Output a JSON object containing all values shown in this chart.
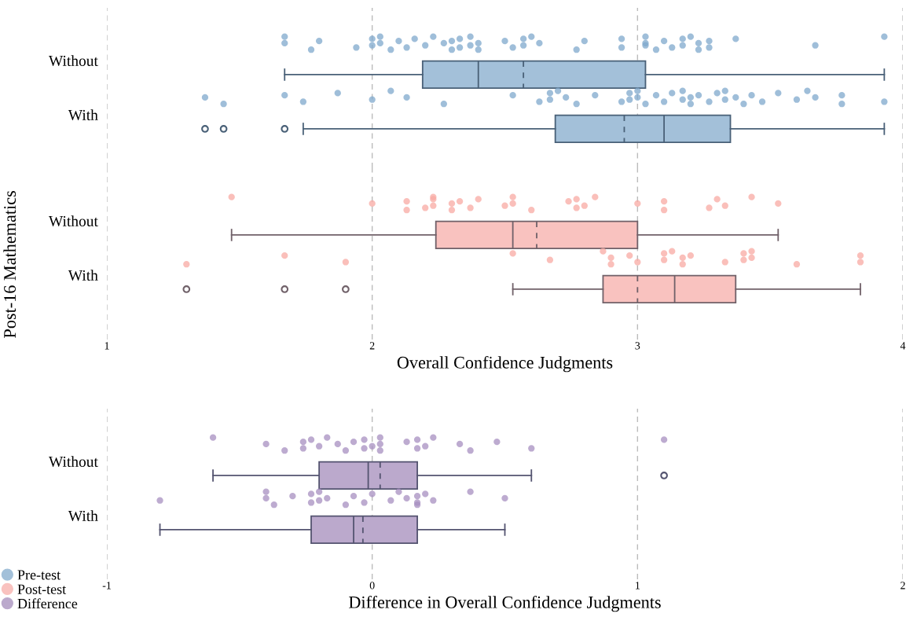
{
  "chart_data": [
    {
      "type": "box",
      "orientation": "horizontal",
      "ylabel": "Post-16 Mathematics",
      "categories": [
        "Without",
        "With"
      ],
      "tick_labels": "y",
      "xlim": [
        1,
        4
      ],
      "xticks": [
        1,
        2,
        3,
        4
      ],
      "grid": "x",
      "series": [
        {
          "name": "Pre-test",
          "color": "#a3c0d9",
          "boxes": [
            {
              "low": 1.67,
              "q1": 2.19,
              "median": 2.4,
              "q3": 3.03,
              "high": 3.93,
              "mean": 2.57
            },
            {
              "low": 1.74,
              "q1": 2.69,
              "median": 3.1,
              "q3": 3.35,
              "high": 3.93,
              "mean": 2.95,
              "outliers": [
                1.37,
                1.44,
                1.67
              ]
            }
          ]
        },
        {
          "type": "scatter",
          "color": "#7fa8cc",
          "x": [
            "Without",
            "Without",
            "Without",
            "Without",
            "Without",
            "Without",
            "Without",
            "Without",
            "Without",
            "Without",
            "Without",
            "Without",
            "Without",
            "Without",
            "Without",
            "Without",
            "Without",
            "Without",
            "Without",
            "Without",
            "Without",
            "Without",
            "Without",
            "Without",
            "Without",
            "Without",
            "Without",
            "Without",
            "Without",
            "Without",
            "Without",
            "Without",
            "Without",
            "Without",
            "Without",
            "Without",
            "Without",
            "Without",
            "Without",
            "Without",
            "Without",
            "Without",
            "Without",
            "Without",
            "Without",
            "Without",
            "Without",
            "Without",
            "Without",
            "Without",
            "With",
            "With",
            "With",
            "With",
            "With",
            "With",
            "With",
            "With",
            "With",
            "With",
            "With",
            "With",
            "With",
            "With",
            "With",
            "With",
            "With",
            "With",
            "With",
            "With",
            "With",
            "With",
            "With",
            "With",
            "With",
            "With",
            "With",
            "With",
            "With",
            "With",
            "With",
            "With",
            "With",
            "With",
            "With",
            "With",
            "With",
            "With",
            "With",
            "With",
            "With",
            "With",
            "With",
            "With",
            "With",
            "With"
          ],
          "values": [
            1.67,
            1.67,
            1.77,
            1.8,
            1.94,
            2.0,
            2.0,
            2.03,
            2.03,
            2.07,
            2.1,
            2.13,
            2.16,
            2.2,
            2.23,
            2.27,
            2.3,
            2.3,
            2.33,
            2.33,
            2.37,
            2.37,
            2.4,
            2.4,
            2.5,
            2.53,
            2.57,
            2.57,
            2.6,
            2.63,
            2.77,
            2.8,
            2.94,
            2.94,
            3.03,
            3.03,
            3.03,
            3.07,
            3.1,
            3.13,
            3.17,
            3.17,
            3.2,
            3.23,
            3.23,
            3.27,
            3.27,
            3.37,
            3.67,
            3.93,
            1.37,
            1.44,
            1.67,
            1.74,
            1.87,
            2.0,
            2.07,
            2.13,
            2.27,
            2.53,
            2.63,
            2.67,
            2.67,
            2.7,
            2.73,
            2.77,
            2.84,
            2.94,
            2.97,
            2.97,
            3.0,
            3.0,
            3.03,
            3.07,
            3.1,
            3.13,
            3.17,
            3.17,
            3.2,
            3.2,
            3.23,
            3.27,
            3.3,
            3.33,
            3.33,
            3.37,
            3.4,
            3.43,
            3.47,
            3.53,
            3.6,
            3.64,
            3.67,
            3.77,
            3.77,
            3.93
          ]
        }
      ]
    },
    {
      "type": "box",
      "orientation": "horizontal",
      "xlabel": "Overall Confidence Judgments",
      "categories": [
        "Without",
        "With"
      ],
      "xlim": [
        1,
        4
      ],
      "xticks": [
        1,
        2,
        3,
        4
      ],
      "grid": "x",
      "series": [
        {
          "name": "Post-test",
          "color": "#f9c2bf",
          "boxes": [
            {
              "low": 1.47,
              "q1": 2.24,
              "median": 2.53,
              "q3": 3.0,
              "high": 3.53,
              "mean": 2.62
            },
            {
              "low": 2.53,
              "q1": 2.87,
              "median": 3.14,
              "q3": 3.37,
              "high": 3.84,
              "mean": 3.0,
              "outliers": [
                1.3,
                1.67,
                1.9
              ]
            }
          ]
        },
        {
          "type": "scatter",
          "color": "#f8a9a3",
          "x": [
            "Without",
            "Without",
            "Without",
            "Without",
            "Without",
            "Without",
            "Without",
            "Without",
            "Without",
            "Without",
            "Without",
            "Without",
            "Without",
            "Without",
            "Without",
            "Without",
            "Without",
            "Without",
            "Without",
            "Without",
            "Without",
            "Without",
            "Without",
            "Without",
            "Without",
            "Without",
            "Without",
            "Without",
            "Without",
            "Without",
            "With",
            "With",
            "With",
            "With",
            "With",
            "With",
            "With",
            "With",
            "With",
            "With",
            "With",
            "With",
            "With",
            "With",
            "With",
            "With",
            "With",
            "With",
            "With",
            "With",
            "With",
            "With",
            "With",
            "With"
          ],
          "values": [
            1.47,
            2.0,
            2.13,
            2.13,
            2.2,
            2.23,
            2.23,
            2.23,
            2.3,
            2.3,
            2.33,
            2.37,
            2.4,
            2.5,
            2.53,
            2.53,
            2.6,
            2.74,
            2.77,
            2.77,
            2.8,
            2.84,
            3.0,
            3.1,
            3.1,
            3.27,
            3.3,
            3.33,
            3.43,
            3.53,
            1.3,
            1.67,
            1.9,
            2.53,
            2.67,
            2.87,
            2.9,
            2.9,
            2.97,
            3.0,
            3.1,
            3.1,
            3.13,
            3.17,
            3.17,
            3.2,
            3.33,
            3.4,
            3.4,
            3.43,
            3.43,
            3.6,
            3.84,
            3.84
          ]
        }
      ]
    },
    {
      "type": "box",
      "orientation": "horizontal",
      "xlabel": "Difference in Overall Confidence Judgments",
      "categories": [
        "Without",
        "With"
      ],
      "xlim": [
        -1,
        2
      ],
      "xticks": [
        -1,
        0,
        1,
        2
      ],
      "grid": "x",
      "legend": "bottom left",
      "series": [
        {
          "name": "Difference",
          "color": "#bba9cc",
          "boxes": [
            {
              "low": -0.6,
              "q1": -0.2,
              "median": -0.015,
              "q3": 0.17,
              "high": 0.6,
              "mean": 0.03,
              "outliers": [
                1.1
              ]
            },
            {
              "low": -0.8,
              "q1": -0.23,
              "median": -0.07,
              "q3": 0.17,
              "high": 0.5,
              "mean": -0.035
            }
          ]
        },
        {
          "type": "scatter",
          "color": "#a78fc0",
          "x": [
            "Without",
            "Without",
            "Without",
            "Without",
            "Without",
            "Without",
            "Without",
            "Without",
            "Without",
            "Without",
            "Without",
            "Without",
            "Without",
            "Without",
            "Without",
            "Without",
            "Without",
            "Without",
            "Without",
            "Without",
            "Without",
            "Without",
            "Without",
            "Without",
            "Without",
            "Without",
            "Without",
            "With",
            "With",
            "With",
            "With",
            "With",
            "With",
            "With",
            "With",
            "With",
            "With",
            "With",
            "With",
            "With",
            "With",
            "With",
            "With",
            "With",
            "With",
            "With",
            "With",
            "With",
            "With",
            "With",
            "With"
          ],
          "values": [
            -0.6,
            -0.4,
            -0.33,
            -0.26,
            -0.26,
            -0.23,
            -0.2,
            -0.17,
            -0.13,
            -0.1,
            -0.07,
            -0.03,
            -0.03,
            0.0,
            0.03,
            0.03,
            0.03,
            0.13,
            0.17,
            0.17,
            0.2,
            0.23,
            0.33,
            0.37,
            0.47,
            0.6,
            1.1,
            -0.8,
            -0.4,
            -0.4,
            -0.37,
            -0.3,
            -0.23,
            -0.23,
            -0.2,
            -0.2,
            -0.17,
            -0.1,
            -0.07,
            -0.03,
            0.0,
            0.07,
            0.1,
            0.13,
            0.17,
            0.17,
            0.17,
            0.2,
            0.23,
            0.37,
            0.5
          ]
        }
      ]
    }
  ]
}
